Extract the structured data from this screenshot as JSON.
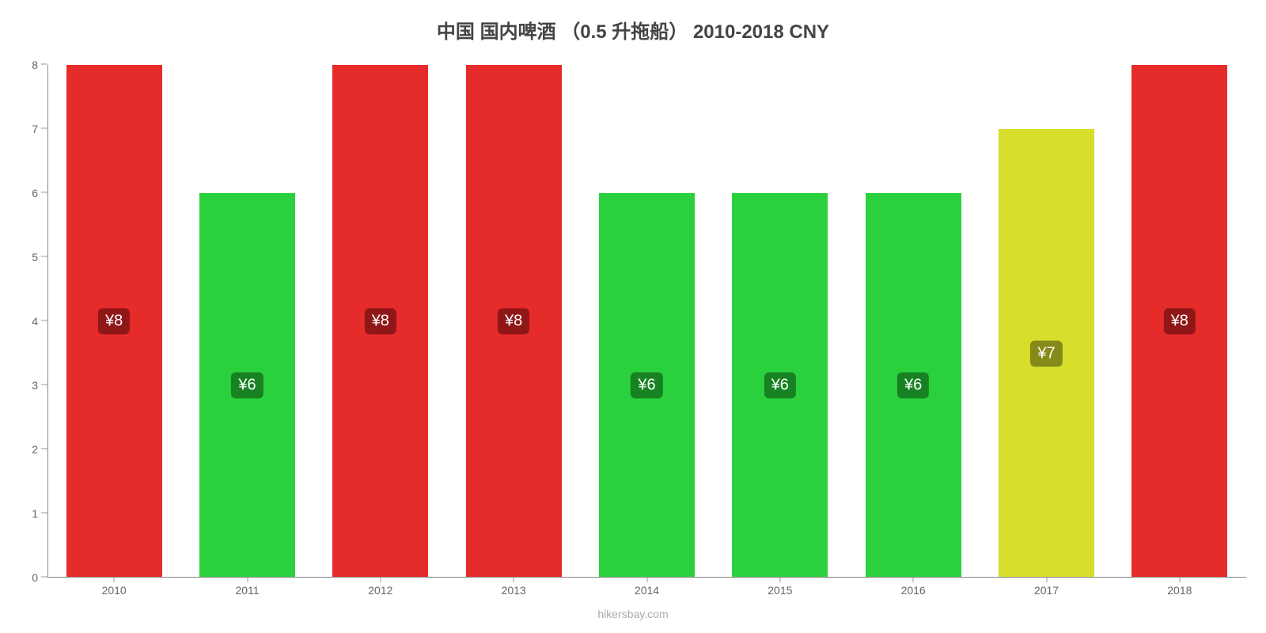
{
  "chart": {
    "type": "bar",
    "title": "中国 国内啤酒 （0.5 升拖船） 2010-2018 CNY",
    "title_fontsize": 24,
    "title_color": "#444444",
    "background_color": "#ffffff",
    "attribution": "hikersbay.com",
    "attribution_color": "#aaaaaa",
    "attribution_fontsize": 14,
    "y": {
      "min": 0,
      "max": 8,
      "ticks": [
        0,
        1,
        2,
        3,
        4,
        5,
        6,
        7,
        8
      ],
      "tick_fontsize": 14,
      "tick_color": "#666666"
    },
    "x": {
      "categories": [
        "2010",
        "2011",
        "2012",
        "2013",
        "2014",
        "2015",
        "2016",
        "2017",
        "2018"
      ],
      "tick_fontsize": 14,
      "tick_color": "#666666"
    },
    "axis_line_color": "#888888",
    "bar_width_ratio": 0.72,
    "label_fontsize": 20,
    "label_text_color": "#ffffff",
    "label_border_radius": 6,
    "series": [
      {
        "category": "2010",
        "value": 8,
        "label": "¥8",
        "bar_color": "#e62b2b",
        "label_bg": "#8f1717"
      },
      {
        "category": "2011",
        "value": 6,
        "label": "¥6",
        "bar_color": "#2bd13d",
        "label_bg": "#178222"
      },
      {
        "category": "2012",
        "value": 8,
        "label": "¥8",
        "bar_color": "#e62b2b",
        "label_bg": "#8f1717"
      },
      {
        "category": "2013",
        "value": 8,
        "label": "¥8",
        "bar_color": "#e62b2b",
        "label_bg": "#8f1717"
      },
      {
        "category": "2014",
        "value": 6,
        "label": "¥6",
        "bar_color": "#2bd13d",
        "label_bg": "#178222"
      },
      {
        "category": "2015",
        "value": 6,
        "label": "¥6",
        "bar_color": "#2bd13d",
        "label_bg": "#178222"
      },
      {
        "category": "2016",
        "value": 6,
        "label": "¥6",
        "bar_color": "#2bd13d",
        "label_bg": "#178222"
      },
      {
        "category": "2017",
        "value": 7,
        "label": "¥7",
        "bar_color": "#d7de2b",
        "label_bg": "#868a18"
      },
      {
        "category": "2018",
        "value": 8,
        "label": "¥8",
        "bar_color": "#e62b2b",
        "label_bg": "#8f1717"
      }
    ]
  }
}
